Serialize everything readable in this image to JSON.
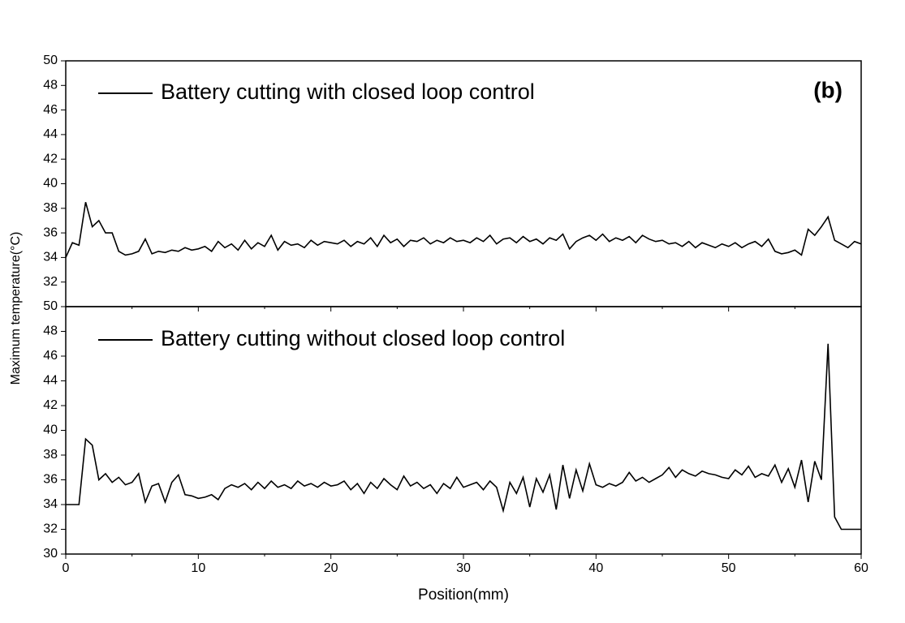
{
  "chart_data": [
    {
      "type": "line",
      "ylabel": "Maximum temperature(°C)",
      "annotation": "(b)",
      "x": [
        0,
        0.5,
        1,
        1.5,
        2,
        2.5,
        3,
        3.5,
        4,
        4.5,
        5,
        5.5,
        6,
        6.5,
        7,
        7.5,
        8,
        8.5,
        9,
        9.5,
        10,
        10.5,
        11,
        11.5,
        12,
        12.5,
        13,
        13.5,
        14,
        14.5,
        15,
        15.5,
        16,
        16.5,
        17,
        17.5,
        18,
        18.5,
        19,
        19.5,
        20,
        20.5,
        21,
        21.5,
        22,
        22.5,
        23,
        23.5,
        24,
        24.5,
        25,
        25.5,
        26,
        26.5,
        27,
        27.5,
        28,
        28.5,
        29,
        29.5,
        30,
        30.5,
        31,
        31.5,
        32,
        32.5,
        33,
        33.5,
        34,
        34.5,
        35,
        35.5,
        36,
        36.5,
        37,
        37.5,
        38,
        38.5,
        39,
        39.5,
        40,
        40.5,
        41,
        41.5,
        42,
        42.5,
        43,
        43.5,
        44,
        44.5,
        45,
        45.5,
        46,
        46.5,
        47,
        47.5,
        48,
        48.5,
        49,
        49.5,
        50,
        50.5,
        51,
        51.5,
        52,
        52.5,
        53,
        53.5,
        54,
        54.5,
        55,
        55.5,
        56,
        56.5,
        57,
        57.5,
        58,
        58.5,
        59,
        59.5,
        60
      ],
      "series": [
        {
          "name": "Battery cutting with closed loop control",
          "color": "#000000",
          "values": [
            34,
            35.2,
            35,
            38.5,
            36.5,
            37,
            36,
            36,
            34.5,
            34.2,
            34.3,
            34.5,
            35.5,
            34.3,
            34.5,
            34.4,
            34.6,
            34.5,
            34.8,
            34.6,
            34.7,
            34.9,
            34.5,
            35.3,
            34.8,
            35.1,
            34.6,
            35.4,
            34.7,
            35.2,
            34.9,
            35.8,
            34.6,
            35.3,
            35,
            35.1,
            34.8,
            35.4,
            35,
            35.3,
            35.2,
            35.1,
            35.4,
            34.9,
            35.3,
            35.1,
            35.6,
            34.9,
            35.8,
            35.2,
            35.5,
            34.9,
            35.4,
            35.3,
            35.6,
            35.1,
            35.4,
            35.2,
            35.6,
            35.3,
            35.4,
            35.2,
            35.6,
            35.3,
            35.8,
            35.1,
            35.5,
            35.6,
            35.2,
            35.7,
            35.3,
            35.5,
            35.1,
            35.6,
            35.4,
            35.9,
            34.7,
            35.3,
            35.6,
            35.8,
            35.4,
            35.9,
            35.3,
            35.6,
            35.4,
            35.7,
            35.2,
            35.8,
            35.5,
            35.3,
            35.4,
            35.1,
            35.2,
            34.9,
            35.3,
            34.8,
            35.2,
            35,
            34.8,
            35.1,
            34.9,
            35.2,
            34.8,
            35.1,
            35.3,
            34.9,
            35.5,
            34.5,
            34.3,
            34.4,
            34.6,
            34.2,
            36.3,
            35.8,
            36.5,
            37.3,
            35.4,
            35.1,
            34.8,
            35.3,
            35.1
          ]
        }
      ],
      "xlim": [
        0,
        60
      ],
      "xticks": [
        0,
        10,
        20,
        30,
        40,
        50,
        60
      ],
      "ylim": [
        30,
        50
      ],
      "yticks": [
        32,
        34,
        36,
        38,
        40,
        42,
        44,
        46,
        48,
        50
      ]
    },
    {
      "type": "line",
      "xlabel": "Position(mm)",
      "x": [
        0,
        0.5,
        1,
        1.5,
        2,
        2.5,
        3,
        3.5,
        4,
        4.5,
        5,
        5.5,
        6,
        6.5,
        7,
        7.5,
        8,
        8.5,
        9,
        9.5,
        10,
        10.5,
        11,
        11.5,
        12,
        12.5,
        13,
        13.5,
        14,
        14.5,
        15,
        15.5,
        16,
        16.5,
        17,
        17.5,
        18,
        18.5,
        19,
        19.5,
        20,
        20.5,
        21,
        21.5,
        22,
        22.5,
        23,
        23.5,
        24,
        24.5,
        25,
        25.5,
        26,
        26.5,
        27,
        27.5,
        28,
        28.5,
        29,
        29.5,
        30,
        30.5,
        31,
        31.5,
        32,
        32.5,
        33,
        33.5,
        34,
        34.5,
        35,
        35.5,
        36,
        36.5,
        37,
        37.5,
        38,
        38.5,
        39,
        39.5,
        40,
        40.5,
        41,
        41.5,
        42,
        42.5,
        43,
        43.5,
        44,
        44.5,
        45,
        45.5,
        46,
        46.5,
        47,
        47.5,
        48,
        48.5,
        49,
        49.5,
        50,
        50.5,
        51,
        51.5,
        52,
        52.5,
        53,
        53.5,
        54,
        54.5,
        55,
        55.5,
        56,
        56.5,
        57,
        57.5,
        58,
        58.5,
        59,
        59.5,
        60
      ],
      "series": [
        {
          "name": "Battery cutting without closed loop control",
          "color": "#000000",
          "values": [
            34,
            34,
            34,
            39.3,
            38.8,
            36,
            36.5,
            35.8,
            36.2,
            35.6,
            35.8,
            36.5,
            34.2,
            35.5,
            35.7,
            34.2,
            35.8,
            36.4,
            34.8,
            34.7,
            34.5,
            34.6,
            34.8,
            34.4,
            35.3,
            35.6,
            35.4,
            35.7,
            35.2,
            35.8,
            35.3,
            35.9,
            35.4,
            35.6,
            35.3,
            35.9,
            35.5,
            35.7,
            35.4,
            35.8,
            35.5,
            35.6,
            35.9,
            35.2,
            35.7,
            34.9,
            35.8,
            35.3,
            36.1,
            35.6,
            35.2,
            36.3,
            35.5,
            35.8,
            35.3,
            35.6,
            34.9,
            35.7,
            35.3,
            36.2,
            35.4,
            35.6,
            35.8,
            35.2,
            35.9,
            35.4,
            33.5,
            35.8,
            34.9,
            36.2,
            33.8,
            36.1,
            35,
            36.4,
            33.6,
            37.2,
            34.5,
            36.8,
            35.1,
            37.3,
            35.6,
            35.4,
            35.7,
            35.5,
            35.8,
            36.6,
            35.9,
            36.2,
            35.8,
            36.1,
            36.4,
            37,
            36.2,
            36.8,
            36.5,
            36.3,
            36.7,
            36.5,
            36.4,
            36.2,
            36.1,
            36.8,
            36.4,
            37.1,
            36.2,
            36.5,
            36.3,
            37.2,
            35.8,
            36.9,
            35.4,
            37.6,
            34.2,
            37.5,
            36,
            47,
            33,
            32,
            32,
            32,
            32
          ]
        }
      ],
      "xlim": [
        0,
        60
      ],
      "xticks": [
        0,
        10,
        20,
        30,
        40,
        50,
        60
      ],
      "ylim": [
        30,
        50
      ],
      "yticks": [
        30,
        32,
        34,
        36,
        38,
        40,
        42,
        44,
        46,
        48,
        50
      ]
    }
  ]
}
